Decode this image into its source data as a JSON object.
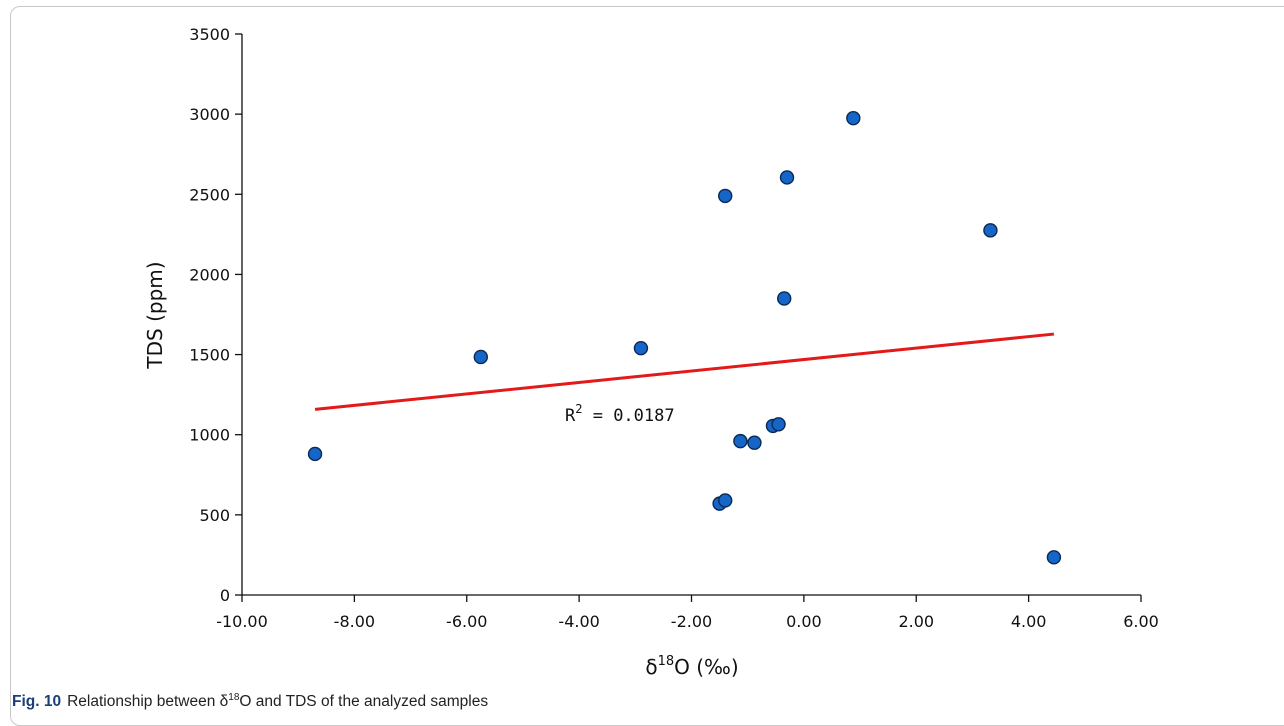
{
  "caption": {
    "label": "Fig. 10",
    "text": "Relationship between δ18O and TDS of the analyzed samples",
    "text_before": "Relationship between δ",
    "text_sup": "18",
    "text_after": "O and TDS of the analyzed samples"
  },
  "chart_data": {
    "type": "scatter",
    "title": "",
    "xlabel": "δ18O (‰)",
    "xlabel_parts": {
      "before": "δ",
      "sup": "18",
      "after": "O (‰)"
    },
    "ylabel": "TDS (ppm)",
    "xlim": [
      -10,
      6
    ],
    "ylim": [
      0,
      3500
    ],
    "x_ticks": [
      -10,
      -8,
      -6,
      -4,
      -2,
      0,
      2,
      4,
      6
    ],
    "x_tick_labels": [
      "-10.00",
      "-8.00",
      "-6.00",
      "-4.00",
      "-2.00",
      "0.00",
      "2.00",
      "4.00",
      "6.00"
    ],
    "y_ticks": [
      0,
      500,
      1000,
      1500,
      2000,
      2500,
      3000,
      3500
    ],
    "y_tick_labels": [
      "0",
      "500",
      "1000",
      "1500",
      "2000",
      "2500",
      "3000",
      "3500"
    ],
    "grid": false,
    "series": [
      {
        "marker_color": "#1566c8",
        "marker_edge": "#0a2a55",
        "x": [
          -8.7,
          -5.75,
          -2.9,
          -1.4,
          -0.3,
          0.88,
          3.32,
          -0.35,
          -1.13,
          -0.88,
          -0.55,
          -0.45,
          -1.5,
          -1.4,
          4.45
        ],
        "y": [
          880,
          1485,
          1540,
          2490,
          2605,
          2975,
          2275,
          1850,
          960,
          950,
          1055,
          1065,
          570,
          590,
          235
        ]
      }
    ],
    "trendline": {
      "color": "#e41a1a",
      "x": [
        -8.7,
        4.45
      ],
      "y": [
        1158,
        1628
      ],
      "annotation": "R² = 0.0187",
      "annotation_base": "R",
      "annotation_sup": "2",
      "annotation_rest": " = 0.0187"
    }
  }
}
